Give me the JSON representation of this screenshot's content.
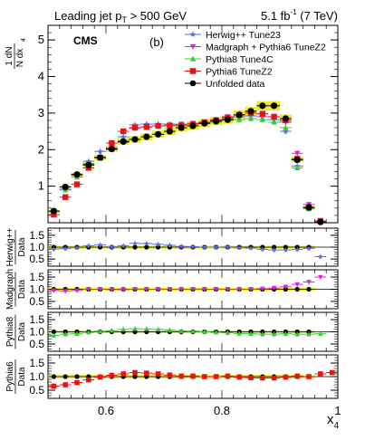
{
  "header": {
    "left_main": "Leading jet p",
    "left_sub": "T",
    "left_tail": " > 500 GeV",
    "right_main": "5.1 fb",
    "right_sup": "-1",
    "right_tail": " (7 TeV)"
  },
  "labels": {
    "cms": "CMS",
    "panel": "(b)",
    "ylabel_num": "1 dN",
    "ylabel_den": "N dx",
    "ylabel_sub": "4",
    "xlabel_main": "x",
    "xlabel_sub": "4"
  },
  "colors": {
    "herwig": "#5b6fd6",
    "madgraph": "#e020e0",
    "pythia8": "#33cc33",
    "pythia6": "#ee1111",
    "data": "#000000",
    "band": "#e8e800"
  },
  "chart_data": {
    "type": "scatter",
    "x": [
      0.51,
      0.53,
      0.55,
      0.57,
      0.59,
      0.61,
      0.63,
      0.65,
      0.67,
      0.69,
      0.71,
      0.73,
      0.75,
      0.77,
      0.79,
      0.81,
      0.83,
      0.85,
      0.87,
      0.89,
      0.91,
      0.93,
      0.95,
      0.97,
      0.99
    ],
    "xlim": [
      0.5,
      1.0
    ],
    "xticks": [
      0.6,
      0.8,
      1
    ],
    "xlabel": "x4",
    "main": {
      "ylim": [
        0,
        5.4
      ],
      "yticks": [
        1,
        2,
        3,
        4,
        5
      ],
      "series": [
        {
          "name": "Herwig++ Tune23",
          "key": "herwig",
          "marker": "star",
          "values": [
            0.3,
            0.92,
            1.3,
            1.68,
            1.95,
            2.05,
            2.35,
            2.68,
            2.7,
            2.7,
            2.7,
            2.68,
            2.7,
            2.72,
            2.78,
            2.85,
            2.9,
            2.92,
            2.9,
            2.82,
            2.5,
            1.55,
            0.4,
            null,
            null
          ]
        },
        {
          "name": "Madgraph + Pythia6 TuneZ2",
          "key": "madgraph",
          "marker": "triangle-down",
          "values": [
            0.3,
            0.9,
            1.25,
            1.6,
            1.78,
            2.0,
            2.2,
            2.58,
            2.62,
            2.65,
            2.68,
            2.7,
            2.72,
            2.75,
            2.82,
            2.9,
            2.95,
            3.05,
            2.98,
            2.9,
            2.75,
            1.9,
            0.5,
            null,
            null
          ]
        },
        {
          "name": "Pythia8 Tune4C",
          "key": "pythia8",
          "marker": "triangle-up",
          "values": [
            0.3,
            0.9,
            1.25,
            1.62,
            1.8,
            2.0,
            2.25,
            2.6,
            2.62,
            2.65,
            2.68,
            2.7,
            2.7,
            2.72,
            2.75,
            2.8,
            2.82,
            2.85,
            2.82,
            2.75,
            2.6,
            1.5,
            0.38,
            null,
            null
          ]
        },
        {
          "name": "Pythia6 TuneZ2",
          "key": "pythia6",
          "marker": "square",
          "values": [
            0.22,
            0.7,
            1.05,
            1.5,
            1.78,
            2.18,
            2.5,
            2.6,
            2.62,
            2.65,
            2.65,
            2.66,
            2.7,
            2.75,
            2.8,
            2.88,
            2.95,
            3.0,
            2.98,
            2.9,
            2.8,
            1.75,
            0.42,
            0.05,
            null
          ]
        },
        {
          "name": "Unfolded data",
          "key": "data",
          "marker": "circle",
          "values": [
            0.32,
            0.98,
            1.32,
            1.58,
            1.78,
            2.02,
            2.22,
            2.28,
            2.35,
            2.42,
            2.5,
            2.6,
            2.65,
            2.72,
            2.78,
            2.82,
            2.95,
            3.05,
            3.2,
            3.2,
            2.85,
            1.72,
            0.42,
            0.02,
            null
          ]
        }
      ]
    },
    "ratios": [
      {
        "ylabel_top": "Herwig++",
        "ylabel_bottom": "Data",
        "key": "herwig",
        "ylim": [
          0.2,
          1.8
        ],
        "yticks": [
          0.5,
          1.0,
          1.5
        ],
        "values": [
          0.92,
          0.94,
          0.98,
          1.06,
          1.1,
          1.02,
          1.06,
          1.16,
          1.15,
          1.12,
          1.08,
          1.03,
          1.02,
          1.0,
          1.0,
          1.01,
          0.98,
          0.96,
          0.91,
          0.88,
          0.88,
          0.9,
          0.95,
          0.6,
          null
        ]
      },
      {
        "ylabel_top": "Madgraph",
        "ylabel_bottom": "Data",
        "key": "madgraph",
        "ylim": [
          0.2,
          1.8
        ],
        "yticks": [
          0.5,
          1.0,
          1.5
        ],
        "values": [
          0.95,
          0.92,
          0.95,
          1.0,
          1.0,
          0.99,
          0.99,
          1.0,
          1.0,
          1.0,
          1.0,
          1.0,
          1.0,
          1.0,
          1.0,
          1.0,
          1.0,
          1.0,
          1.02,
          1.05,
          1.1,
          1.2,
          1.3,
          1.5,
          null
        ]
      },
      {
        "ylabel_top": "Pythia8",
        "ylabel_bottom": "Data",
        "key": "pythia8",
        "ylim": [
          0.2,
          1.8
        ],
        "yticks": [
          0.5,
          1.0,
          1.5
        ],
        "values": [
          0.85,
          0.9,
          0.92,
          0.98,
          1.02,
          1.05,
          1.1,
          1.13,
          1.12,
          1.1,
          1.07,
          1.03,
          1.02,
          1.0,
          0.98,
          0.96,
          0.93,
          0.92,
          0.9,
          0.9,
          0.92,
          0.9,
          0.9,
          0.92,
          null
        ]
      },
      {
        "ylabel_top": "Pythia6",
        "ylabel_bottom": "Data",
        "key": "pythia6",
        "ylim": [
          0.2,
          1.8
        ],
        "yticks": [
          0.5,
          1.0,
          1.5
        ],
        "values": [
          0.65,
          0.7,
          0.78,
          0.88,
          0.98,
          1.05,
          1.1,
          1.15,
          1.13,
          1.1,
          1.06,
          1.02,
          1.02,
          1.0,
          1.0,
          1.02,
          0.98,
          0.96,
          0.95,
          0.95,
          0.98,
          1.02,
          1.0,
          1.1,
          1.15
        ]
      }
    ]
  }
}
